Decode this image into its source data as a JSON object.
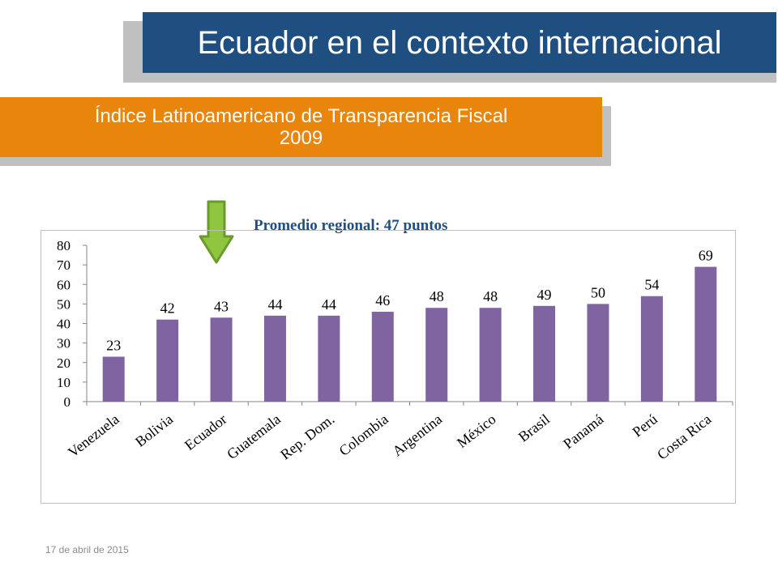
{
  "header": {
    "title": "Ecuador en el contexto internacional"
  },
  "subheader": {
    "title_line1": "Índice Latinoamericano de Transparencia Fiscal",
    "title_line2": "2009"
  },
  "annotation": {
    "average_label": "Promedio regional: 47 puntos",
    "arrow_target": "Ecuador"
  },
  "footer": {
    "date": "17 de abril de 2015"
  },
  "colors": {
    "header_bg": "#1f4e80",
    "subheader_bg": "#e8850a",
    "bar": "#8064a2",
    "arrow": "#8ec640",
    "average_label": "#1f4e80"
  },
  "chart_data": {
    "type": "bar",
    "categories": [
      "Venezuela",
      "Bolivia",
      "Ecuador",
      "Guatemala",
      "Rep. Dom.",
      "Colombia",
      "Argentina",
      "México",
      "Brasil",
      "Panamá",
      "Perú",
      "Costa Rica"
    ],
    "values": [
      23,
      42,
      43,
      44,
      44,
      46,
      48,
      48,
      49,
      50,
      54,
      69
    ],
    "data_labels": [
      "23",
      "42",
      "43",
      "44",
      "44",
      "46",
      "48",
      "48",
      "49",
      "50",
      "54",
      "69"
    ],
    "yticks": [
      "0",
      "10",
      "20",
      "30",
      "40",
      "50",
      "60",
      "70",
      "80"
    ],
    "ylim": [
      0,
      80
    ],
    "grid": false,
    "legend": "none"
  }
}
